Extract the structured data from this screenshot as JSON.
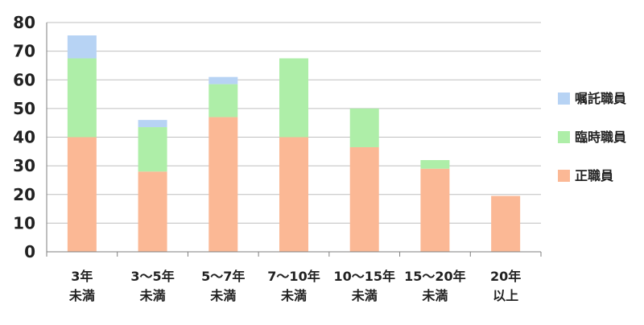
{
  "chart_data": {
    "type": "bar",
    "stacked": true,
    "categories": [
      [
        "3年",
        "未満"
      ],
      [
        "3～5年",
        "未満"
      ],
      [
        "5～7年",
        "未満"
      ],
      [
        "7～10年",
        "未満"
      ],
      [
        "10～15年",
        "未満"
      ],
      [
        "15～20年",
        "未満"
      ],
      [
        "20年",
        "以上"
      ]
    ],
    "series": [
      {
        "name": "正職員",
        "color": "#FBB895",
        "values": [
          40,
          28,
          47,
          40,
          36.5,
          29,
          19.5
        ]
      },
      {
        "name": "臨時職員",
        "color": "#AEEEA8",
        "values": [
          27.5,
          15.5,
          11.5,
          27.5,
          13.5,
          3,
          0
        ]
      },
      {
        "name": "嘱託職員",
        "color": "#B7D3F4",
        "values": [
          8,
          2.5,
          2.5,
          0,
          0,
          0,
          0
        ]
      }
    ],
    "legend_order": [
      "嘱託職員",
      "臨時職員",
      "正職員"
    ],
    "legend_position": "right",
    "ylim": [
      0,
      80
    ],
    "yticks": [
      0,
      10,
      20,
      30,
      40,
      50,
      60,
      70,
      80
    ],
    "grid": true,
    "title": "",
    "xlabel": "",
    "ylabel": ""
  }
}
